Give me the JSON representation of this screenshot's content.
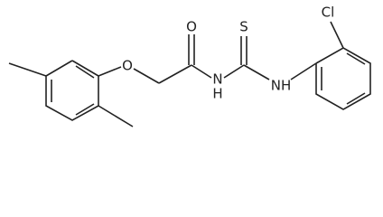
{
  "atoms": [
    "O",
    "O",
    "N",
    "H",
    "S",
    "NH",
    "Cl"
  ]
}
